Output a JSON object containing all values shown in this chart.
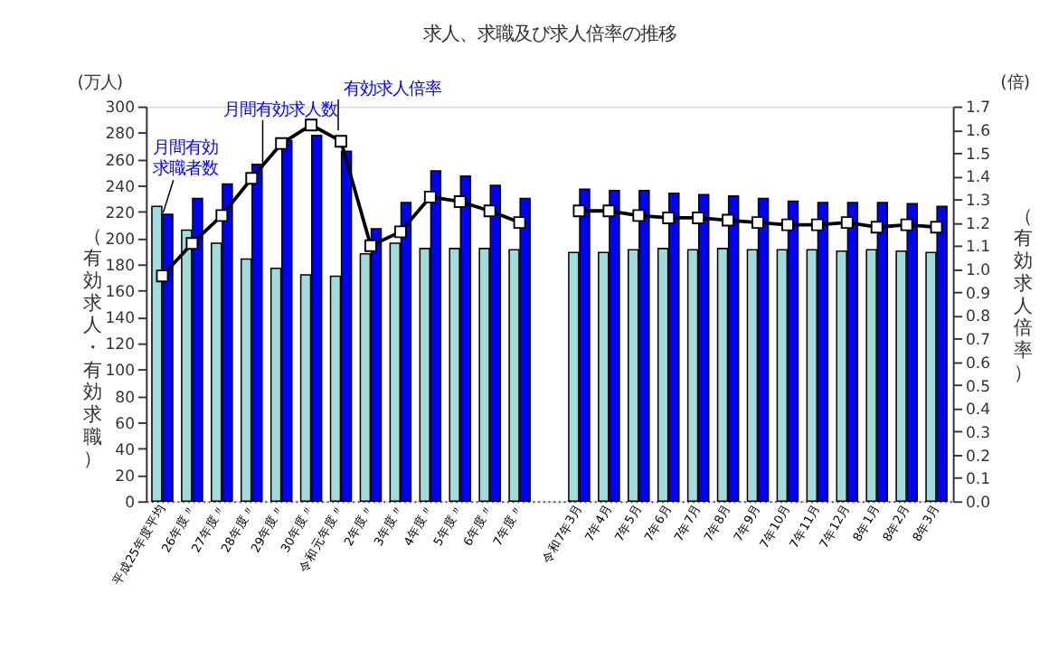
{
  "chart_data": {
    "type": "bar",
    "title": "求人、求職及び求人倍率の推移",
    "ylabel": "（有効求人・有効求職）",
    "y2label": "（有効求人倍率）",
    "annotations": [
      "(万人)",
      "(倍)"
    ],
    "categories": [
      "平成25年度平均",
      "26年度〃",
      "27年度〃",
      "28年度〃",
      "29年度〃",
      "30年度〃",
      "令和元年度〃",
      "2年度〃",
      "3年度〃",
      "4年度〃",
      "5年度〃",
      "6年度〃",
      "7年度〃",
      null,
      "令和7年3月",
      "7年4月",
      "7年5月",
      "7年6月",
      "7年7月",
      "7年8月",
      "7年9月",
      "7年10月",
      "7年11月",
      "7年12月",
      "8年1月",
      "8年2月",
      "8年3月"
    ],
    "series": [
      {
        "name": "月間有効求職者数",
        "color": "#a0dcdc",
        "values": [
          224,
          206,
          196,
          184,
          177,
          172,
          171,
          188,
          196,
          192,
          192,
          192,
          191,
          null,
          189,
          189,
          191,
          192,
          191,
          192,
          191,
          191,
          191,
          190,
          191,
          190,
          189
        ]
      },
      {
        "name": "月間有効求人数",
        "color": "#0000ff",
        "values": [
          218,
          230,
          241,
          256,
          274,
          278,
          266,
          207,
          227,
          251,
          247,
          240,
          230,
          null,
          237,
          236,
          236,
          234,
          233,
          232,
          230,
          228,
          227,
          227,
          227,
          226,
          224
        ]
      },
      {
        "name": "有効求人倍率",
        "type": "line",
        "axis": "y2",
        "color": "#000000",
        "values": [
          0.97,
          1.11,
          1.23,
          1.39,
          1.54,
          1.62,
          1.55,
          1.1,
          1.16,
          1.31,
          1.29,
          1.25,
          1.2,
          null,
          1.25,
          1.25,
          1.23,
          1.22,
          1.22,
          1.21,
          1.2,
          1.19,
          1.19,
          1.2,
          1.18,
          1.19,
          1.18
        ]
      }
    ],
    "marker": "square",
    "ylim": [
      0,
      300
    ],
    "yticks": [
      0,
      20,
      40,
      60,
      80,
      100,
      120,
      140,
      160,
      180,
      200,
      220,
      240,
      260,
      280,
      300
    ],
    "y2lim": [
      0,
      1.7
    ],
    "y2ticks": [
      {
        "value": 0,
        "label": "0.0"
      },
      0.1,
      0.2,
      0.3,
      0.4,
      0.5,
      0.6,
      0.7,
      0.8,
      0.9,
      {
        "value": 1,
        "label": "1.0"
      },
      1.1,
      1.2,
      1.3,
      1.4,
      1.5,
      1.6,
      1.7
    ],
    "grid": false,
    "legend": "top left"
  }
}
